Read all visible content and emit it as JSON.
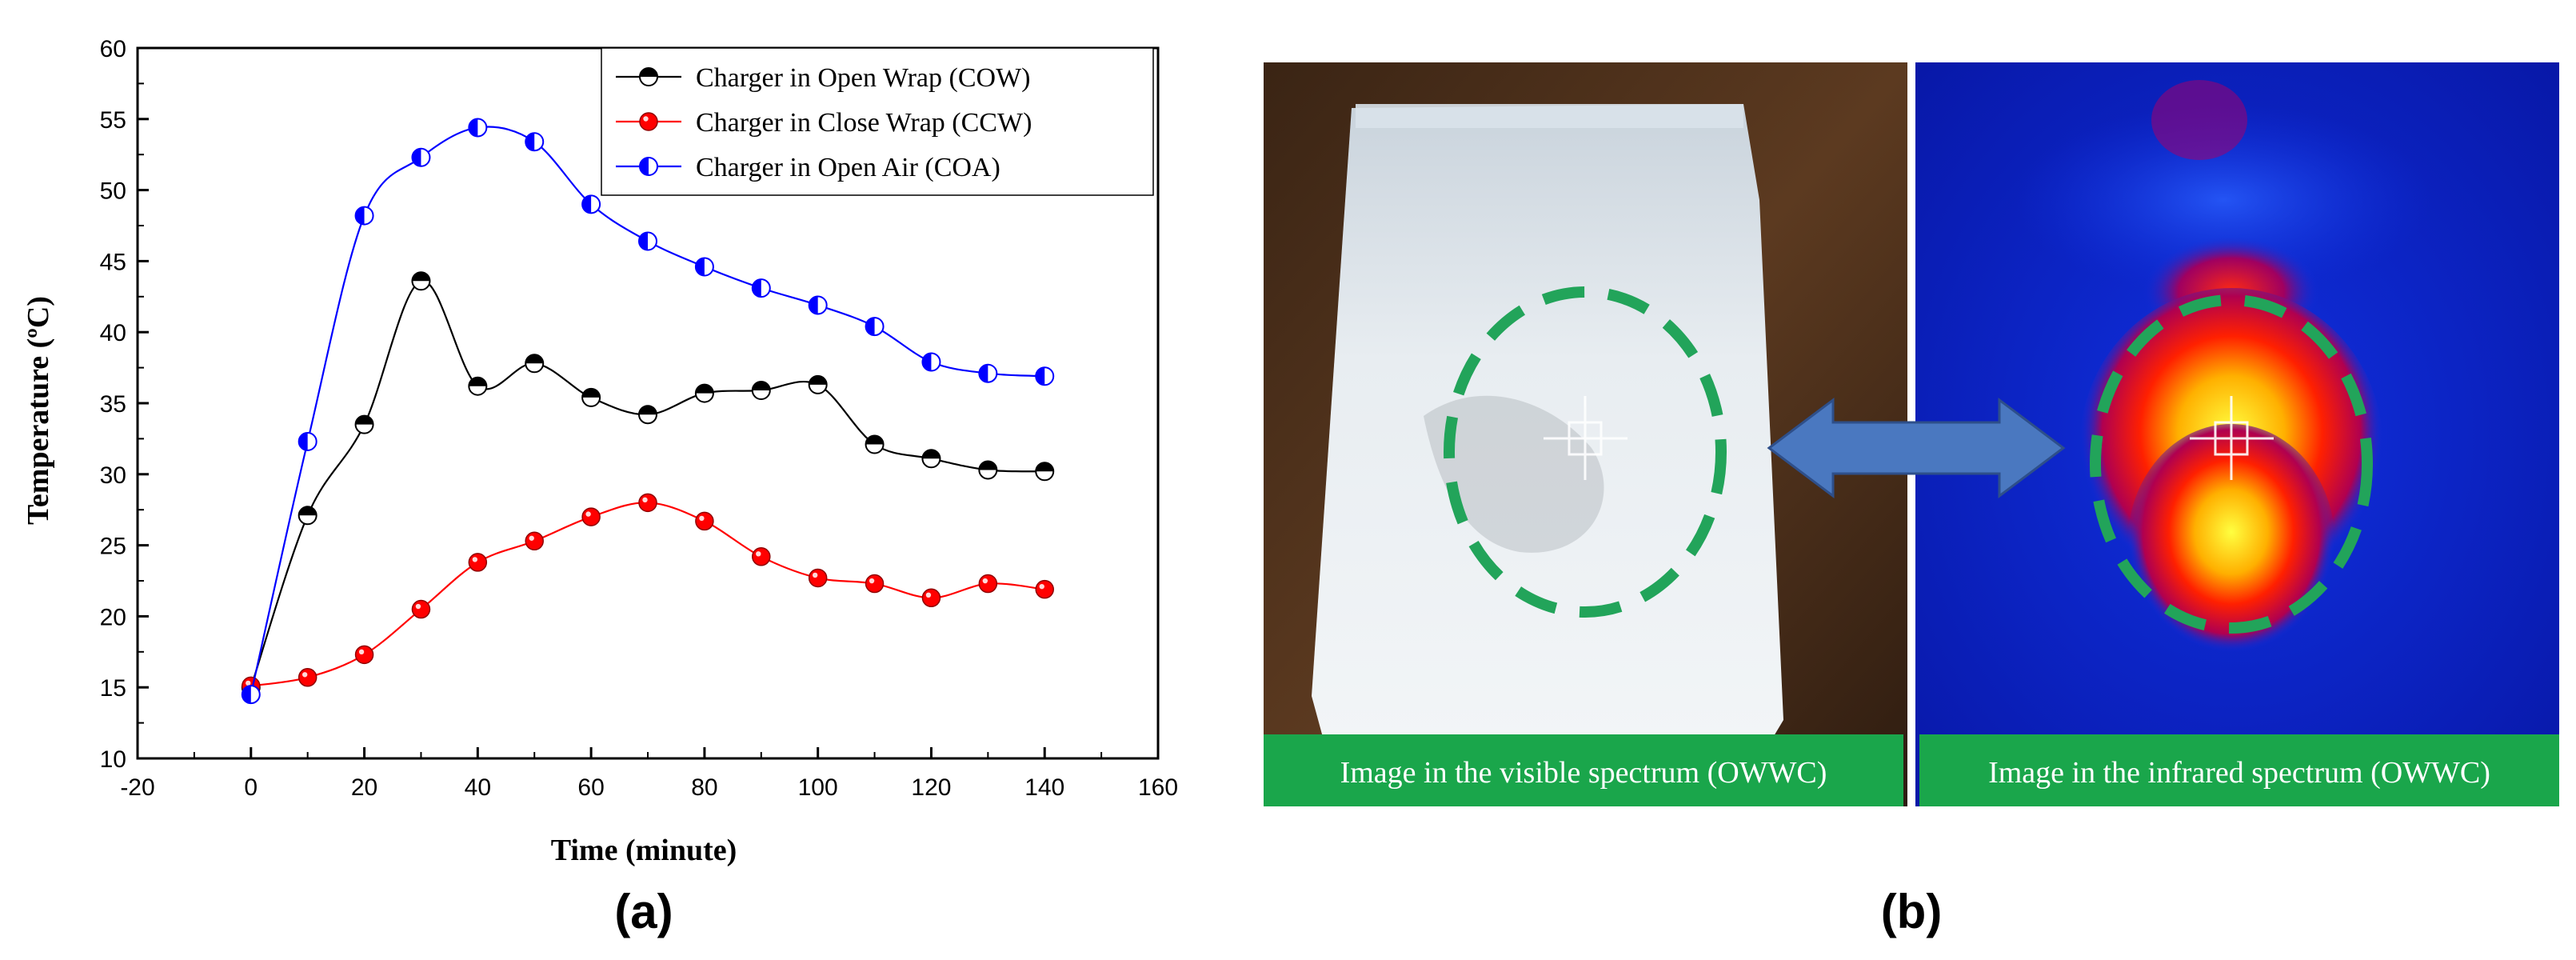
{
  "panels": {
    "a_label": "(a)",
    "b_label": "(b)"
  },
  "chart_data": {
    "type": "line",
    "title": "",
    "xlabel": "Time (minute)",
    "ylabel": "Temperature (ºC)",
    "xlim": [
      -20,
      160
    ],
    "ylim": [
      10,
      60
    ],
    "x_ticks": [
      -20,
      0,
      20,
      40,
      60,
      80,
      100,
      120,
      140,
      160
    ],
    "y_ticks": [
      10,
      15,
      20,
      25,
      30,
      35,
      40,
      45,
      50,
      55,
      60
    ],
    "grid": false,
    "legend_position": "top-right",
    "x": [
      0,
      10,
      20,
      30,
      40,
      50,
      60,
      70,
      80,
      90,
      100,
      110,
      120,
      130,
      140
    ],
    "series": [
      {
        "name": "Charger in Open Wrap (COW)",
        "color": "#000000",
        "marker": "half-filled-top",
        "values": [
          15.0,
          27.1,
          33.5,
          43.6,
          36.2,
          37.8,
          35.4,
          34.2,
          35.7,
          35.9,
          36.3,
          32.1,
          31.1,
          30.3,
          30.2
        ]
      },
      {
        "name": "Charger in Close Wrap (CCW)",
        "color": "#ff0000",
        "marker": "filled",
        "values": [
          15.1,
          15.7,
          17.3,
          20.5,
          23.8,
          25.3,
          27.0,
          28.0,
          26.7,
          24.2,
          22.7,
          22.3,
          21.3,
          22.3,
          21.9
        ]
      },
      {
        "name": "Charger in Open Air (COA)",
        "color": "#0000ff",
        "marker": "half-filled-left",
        "values": [
          14.5,
          32.3,
          48.2,
          52.3,
          54.4,
          53.4,
          49.0,
          46.4,
          44.6,
          43.1,
          41.9,
          40.4,
          37.9,
          37.1,
          36.9
        ]
      }
    ]
  },
  "photo": {
    "visible_caption": "Image in the visible spectrum (OWWC)",
    "infrared_caption": "Image in the infrared spectrum (OWWC)",
    "caption_bg": "#1aa64b",
    "circle_color": "#22a45a",
    "arrow_color": "#4a78c0"
  }
}
